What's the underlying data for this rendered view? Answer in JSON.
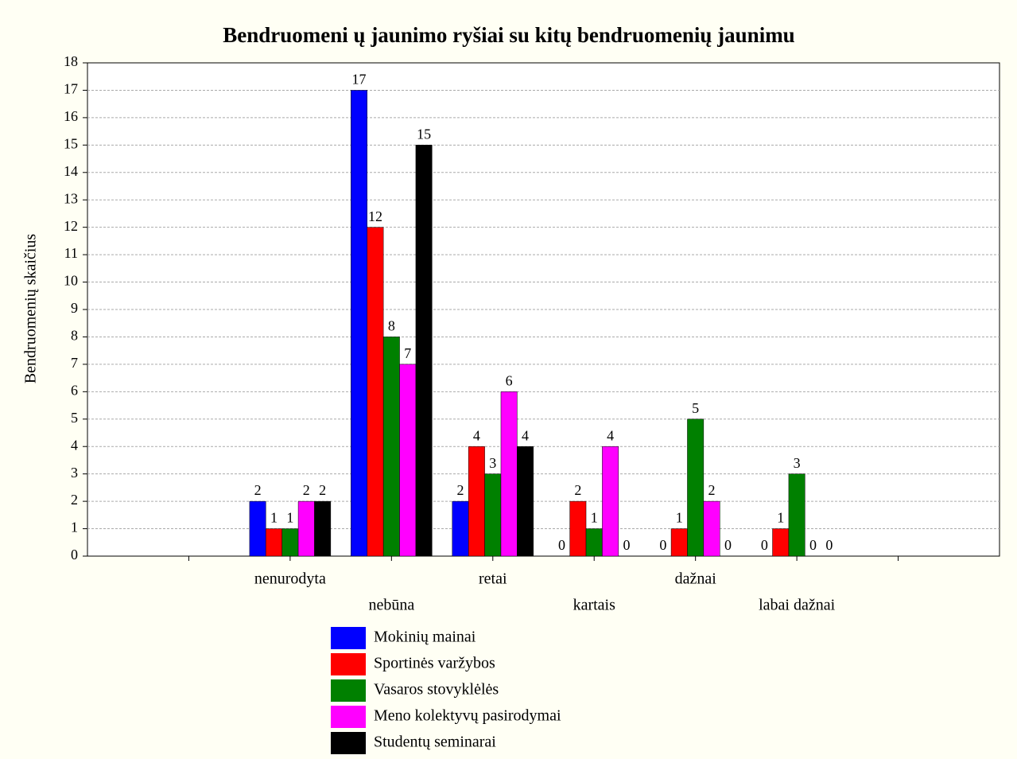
{
  "chart_data": {
    "type": "bar",
    "title": "Bendruomeni ų jaunimo ryšiai su kitų bendruomenių jaunimu",
    "y_label": "Bendruomenių skaičius",
    "categories": [
      null,
      "nenurodyta",
      "nebūna",
      "retai",
      "kartais",
      "dažnai",
      "labai dažnai",
      null
    ],
    "series": [
      {
        "name": "Mokinių mainai",
        "color": "#0000ff",
        "values": [
          null,
          2,
          17,
          2,
          0,
          0,
          0,
          null
        ]
      },
      {
        "name": "Sportinės varžybos",
        "color": "#ff0000",
        "values": [
          null,
          1,
          12,
          4,
          2,
          1,
          1,
          null
        ]
      },
      {
        "name": "Vasaros stovyklėlės",
        "color": "#008000",
        "values": [
          null,
          1,
          8,
          3,
          1,
          5,
          3,
          null
        ]
      },
      {
        "name": "Meno kolektyvų pasirodymai",
        "color": "#ff00ff",
        "values": [
          null,
          2,
          7,
          6,
          4,
          2,
          0,
          null
        ]
      },
      {
        "name": "Studentų seminarai",
        "color": "#000000",
        "values": [
          null,
          2,
          15,
          4,
          0,
          0,
          0,
          null
        ]
      }
    ],
    "ylim": [
      0,
      18
    ],
    "yticks": [
      0,
      1,
      2,
      3,
      4,
      5,
      6,
      7,
      8,
      9,
      10,
      11,
      12,
      13,
      14,
      15,
      16,
      17,
      18
    ],
    "grid": true,
    "legend": "bottom"
  }
}
